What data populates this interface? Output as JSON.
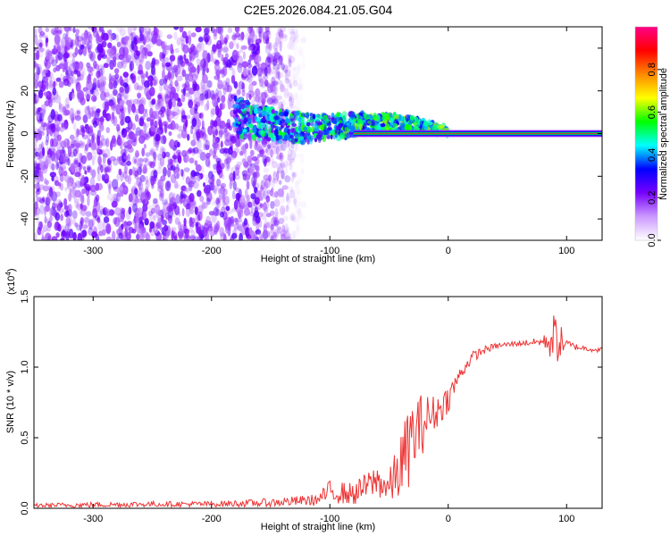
{
  "title": "C2E5.2026.084.21.05.G04",
  "chart_data": [
    {
      "type": "heatmap",
      "name": "spectrogram",
      "xlabel": "Height of straight line (km)",
      "ylabel": "Frequency (Hz)",
      "xlim": [
        -350,
        130
      ],
      "ylim": [
        -50,
        50
      ],
      "xticks": [
        -300,
        -200,
        -100,
        0,
        100
      ],
      "xtick_labels": [
        "-300",
        "-200",
        "-100",
        "0",
        "100"
      ],
      "yticks": [
        -40,
        -20,
        0,
        20,
        40
      ],
      "ytick_labels": [
        "-40",
        "-20",
        "0",
        "20",
        "40"
      ],
      "noise_region_km": [
        -350,
        -130
      ],
      "band_region_km": [
        -180,
        0
      ],
      "steady_line_km": [
        0,
        130
      ],
      "steady_line_freq_hz": 0,
      "colorbar": {
        "label": "Normalized spectral amplitude",
        "range": [
          0,
          1
        ],
        "ticks": [
          0.0,
          0.2,
          0.4,
          0.6,
          0.8
        ],
        "tick_labels": [
          "0.0",
          "0.2",
          "0.4",
          "0.6",
          "0.8"
        ],
        "colormap": [
          "#ffffff",
          "#cc99ff",
          "#7700ff",
          "#0000ff",
          "#00ffff",
          "#00ff00",
          "#ffff00",
          "#ff8800",
          "#ff0000",
          "#ff0088"
        ]
      }
    },
    {
      "type": "line",
      "name": "snr",
      "xlabel": "Height of straight line (km)",
      "ylabel": "SNR (10 * v/v)",
      "yscale_label": "(x10",
      "yscale_exp": "4",
      "yscale_close": ")",
      "xlim": [
        -350,
        130
      ],
      "ylim": [
        0,
        1.5
      ],
      "xticks": [
        -300,
        -200,
        -100,
        0,
        100
      ],
      "xtick_labels": [
        "-300",
        "-200",
        "-100",
        "0",
        "100"
      ],
      "yticks": [
        0.0,
        0.5,
        1.0,
        1.5
      ],
      "ytick_labels": [
        "0.0",
        "0.5",
        "1.0",
        "1.5"
      ],
      "color": "#ee3333",
      "trend_x": [
        -350,
        -300,
        -250,
        -200,
        -150,
        -110,
        -100,
        -80,
        -70,
        -60,
        -50,
        -40,
        -30,
        -20,
        -10,
        0,
        10,
        20,
        30,
        40,
        60,
        80,
        90,
        100,
        110,
        130
      ],
      "trend_y": [
        0.02,
        0.025,
        0.03,
        0.03,
        0.04,
        0.06,
        0.12,
        0.1,
        0.15,
        0.2,
        0.14,
        0.3,
        0.5,
        0.62,
        0.68,
        0.78,
        0.95,
        1.07,
        1.12,
        1.15,
        1.17,
        1.18,
        1.2,
        1.16,
        1.14,
        1.12
      ],
      "noise_amp_y": [
        0.015,
        0.02,
        0.02,
        0.02,
        0.03,
        0.04,
        0.08,
        0.08,
        0.1,
        0.12,
        0.12,
        0.25,
        0.3,
        0.2,
        0.12,
        0.1,
        0.05,
        0.04,
        0.03,
        0.02,
        0.02,
        0.03,
        0.2,
        0.04,
        0.02,
        0.02
      ],
      "series_points": 600
    }
  ]
}
